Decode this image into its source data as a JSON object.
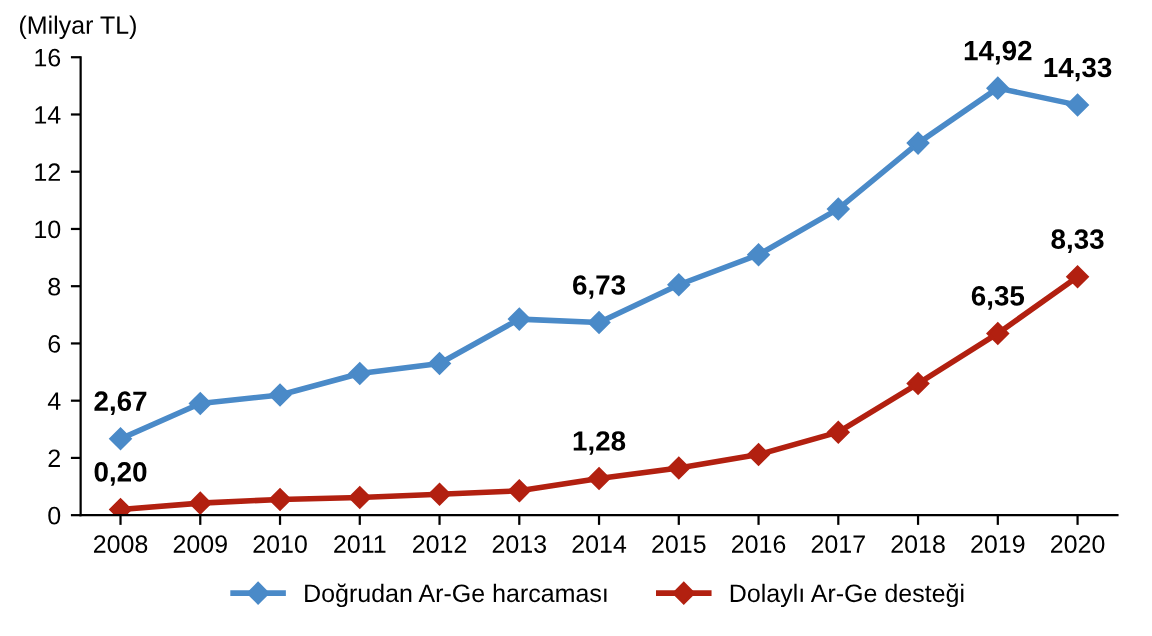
{
  "chart_data": {
    "type": "line",
    "ylabel": "(Milyar TL)",
    "categories": [
      "2008",
      "2009",
      "2010",
      "2011",
      "2012",
      "2013",
      "2014",
      "2015",
      "2016",
      "2017",
      "2018",
      "2019",
      "2020"
    ],
    "series": [
      {
        "name": "Doğrudan Ar-Ge harcaması",
        "color": "#4a8ac8",
        "values": [
          2.67,
          3.9,
          4.2,
          4.95,
          5.3,
          6.85,
          6.73,
          8.05,
          9.1,
          10.7,
          13.0,
          14.92,
          14.33
        ],
        "value_labels": [
          "2,67",
          null,
          null,
          null,
          null,
          null,
          "6,73",
          null,
          null,
          null,
          null,
          "14,92",
          "14,33"
        ]
      },
      {
        "name": "Dolaylı Ar-Ge desteği",
        "color": "#b22010",
        "values": [
          0.2,
          0.42,
          0.55,
          0.62,
          0.73,
          0.85,
          1.28,
          1.65,
          2.12,
          2.9,
          4.6,
          6.35,
          8.33
        ],
        "value_labels": [
          "0,20",
          null,
          null,
          null,
          null,
          null,
          "1,28",
          null,
          null,
          null,
          null,
          "6,35",
          "8,33"
        ]
      }
    ],
    "ylim": [
      0,
      16
    ],
    "yticks": [
      0,
      2,
      4,
      6,
      8,
      10,
      12,
      14,
      16
    ],
    "grid": false,
    "legend": "bottom",
    "marker": "diamond",
    "line_style": "solid"
  }
}
